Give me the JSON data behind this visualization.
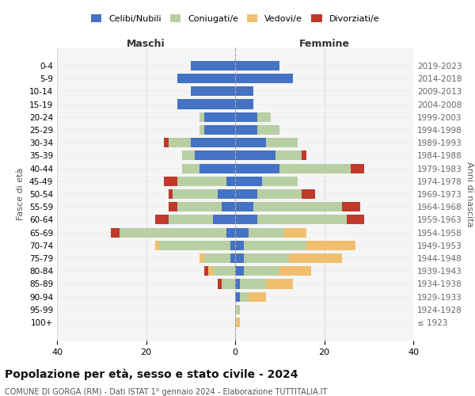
{
  "age_groups": [
    "100+",
    "95-99",
    "90-94",
    "85-89",
    "80-84",
    "75-79",
    "70-74",
    "65-69",
    "60-64",
    "55-59",
    "50-54",
    "45-49",
    "40-44",
    "35-39",
    "30-34",
    "25-29",
    "20-24",
    "15-19",
    "10-14",
    "5-9",
    "0-4"
  ],
  "birth_years": [
    "≤ 1923",
    "1924-1928",
    "1929-1933",
    "1934-1938",
    "1939-1943",
    "1944-1948",
    "1949-1953",
    "1954-1958",
    "1959-1963",
    "1964-1968",
    "1969-1973",
    "1974-1978",
    "1979-1983",
    "1984-1988",
    "1989-1993",
    "1994-1998",
    "1999-2003",
    "2004-2008",
    "2009-2013",
    "2014-2018",
    "2019-2023"
  ],
  "colors": {
    "celibi": "#4472c4",
    "coniugati": "#b8cfa4",
    "vedovi": "#f0bf6e",
    "divorziati": "#c0392b",
    "background": "#f5f5f5",
    "grid": "#cccccc"
  },
  "maschi": {
    "celibi": [
      0,
      0,
      0,
      0,
      0,
      1,
      1,
      2,
      5,
      3,
      4,
      2,
      8,
      9,
      10,
      7,
      7,
      13,
      10,
      13,
      10
    ],
    "coniugati": [
      0,
      0,
      0,
      3,
      5,
      6,
      16,
      24,
      10,
      10,
      10,
      11,
      4,
      3,
      5,
      1,
      1,
      0,
      0,
      0,
      0
    ],
    "vedovi": [
      0,
      0,
      0,
      0,
      1,
      1,
      1,
      0,
      0,
      0,
      0,
      0,
      0,
      0,
      0,
      0,
      0,
      0,
      0,
      0,
      0
    ],
    "divorziati": [
      0,
      0,
      0,
      1,
      1,
      0,
      0,
      2,
      3,
      2,
      1,
      3,
      0,
      0,
      1,
      0,
      0,
      0,
      0,
      0,
      0
    ]
  },
  "femmine": {
    "celibi": [
      0,
      0,
      1,
      1,
      2,
      2,
      2,
      3,
      5,
      4,
      5,
      6,
      10,
      9,
      7,
      5,
      5,
      4,
      4,
      13,
      10
    ],
    "coniugati": [
      0,
      1,
      2,
      6,
      8,
      10,
      14,
      8,
      20,
      20,
      10,
      8,
      16,
      6,
      7,
      5,
      3,
      0,
      0,
      0,
      0
    ],
    "vedovi": [
      1,
      0,
      4,
      6,
      7,
      12,
      11,
      5,
      0,
      0,
      0,
      0,
      0,
      0,
      0,
      0,
      0,
      0,
      0,
      0,
      0
    ],
    "divorziati": [
      0,
      0,
      0,
      0,
      0,
      0,
      0,
      0,
      4,
      4,
      3,
      0,
      3,
      1,
      0,
      0,
      0,
      0,
      0,
      0,
      0
    ]
  },
  "xlim": 40,
  "title": "Popolazione per età, sesso e stato civile - 2024",
  "subtitle": "COMUNE DI GORGA (RM) - Dati ISTAT 1° gennaio 2024 - Elaborazione TUTTITALIA.IT",
  "ylabel_left": "Fasce di età",
  "ylabel_right": "Anni di nascita",
  "xlabel_left": "Maschi",
  "xlabel_right": "Femmine"
}
